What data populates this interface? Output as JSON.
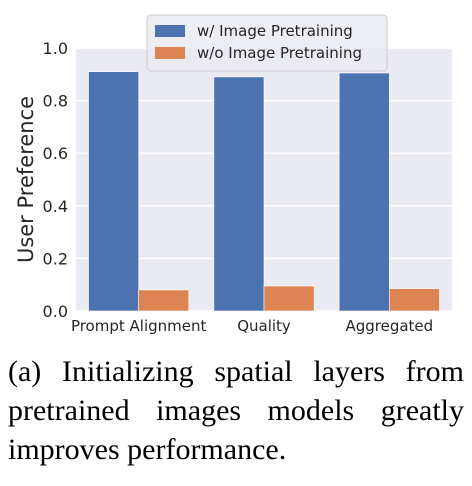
{
  "chart_data": {
    "type": "bar",
    "categories": [
      "Prompt Alignment",
      "Quality",
      "Aggregated"
    ],
    "series": [
      {
        "name": "w/ Image Pretraining",
        "values": [
          0.91,
          0.89,
          0.905
        ],
        "color": "#4c72b0"
      },
      {
        "name": "w/o Image Pretraining",
        "values": [
          0.08,
          0.095,
          0.085
        ],
        "color": "#dd8452"
      }
    ],
    "xlabel": "",
    "ylabel": "User Preference",
    "ylim": [
      0,
      1.0
    ],
    "yticks": [
      "0.0",
      "0.2",
      "0.4",
      "0.6",
      "0.8",
      "1.0"
    ],
    "grid": true,
    "background": "#eaeaf2",
    "legend_position": "top-center"
  },
  "caption": "(a) Initializing spatial layers from pretrained images models greatly improves performance."
}
